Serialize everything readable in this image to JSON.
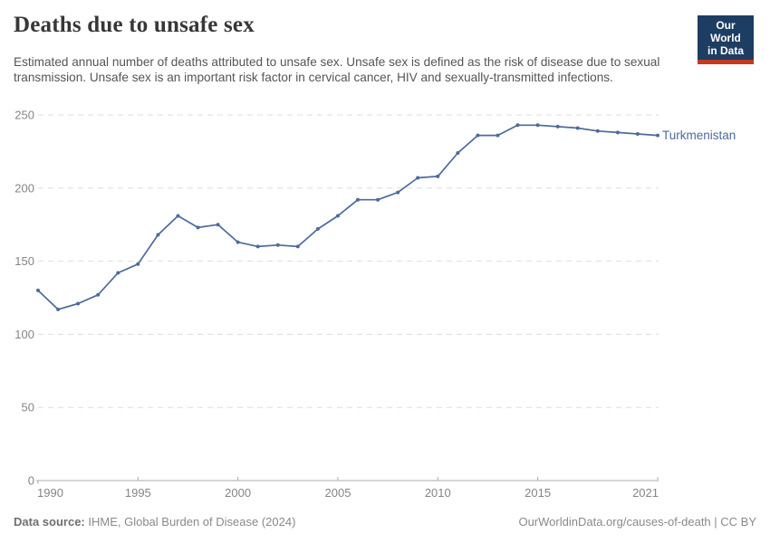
{
  "header": {
    "title": "Deaths due to unsafe sex",
    "subtitle": "Estimated annual number of deaths attributed to unsafe sex. Unsafe sex is defined as the risk of disease due to sexual transmission. Unsafe sex is an important risk factor in cervical cancer, HIV and sexually-transmitted infections.",
    "logo": {
      "line1": "Our World",
      "line2": "in Data"
    }
  },
  "chart_data": {
    "type": "line",
    "title": "Deaths due to unsafe sex",
    "x": [
      1990,
      1991,
      1992,
      1993,
      1994,
      1995,
      1996,
      1997,
      1998,
      1999,
      2000,
      2001,
      2002,
      2003,
      2004,
      2005,
      2006,
      2007,
      2008,
      2009,
      2010,
      2011,
      2012,
      2013,
      2014,
      2015,
      2016,
      2017,
      2018,
      2019,
      2020,
      2021
    ],
    "series": [
      {
        "name": "Turkmenistan",
        "color": "#4c6a9c",
        "values": [
          130,
          117,
          121,
          127,
          142,
          148,
          168,
          181,
          173,
          175,
          163,
          160,
          161,
          160,
          172,
          181,
          192,
          192,
          197,
          207,
          208,
          224,
          236,
          236,
          243,
          243,
          242,
          241,
          239,
          238,
          237,
          236
        ]
      }
    ],
    "xlabel": "",
    "ylabel": "",
    "ylim": [
      0,
      250
    ],
    "yticks": [
      0,
      50,
      100,
      150,
      200,
      250
    ],
    "xticks": [
      1990,
      1995,
      2000,
      2005,
      2010,
      2015,
      2021
    ],
    "grid": "horizontal-dashed",
    "legend": "end-of-line-label"
  },
  "footer": {
    "source_label": "Data source:",
    "source_value": " IHME, Global Burden of Disease (2024)",
    "credit": "OurWorldinData.org/causes-of-death | CC BY"
  },
  "colors": {
    "line": "#4c6a9c",
    "grid": "#dedede",
    "axis_line": "#adadad",
    "axis_text": "#858585",
    "title_text": "#373737",
    "subtitle_text": "#555555",
    "logo_bg": "#1d3d63",
    "logo_accent": "#c5391f"
  }
}
